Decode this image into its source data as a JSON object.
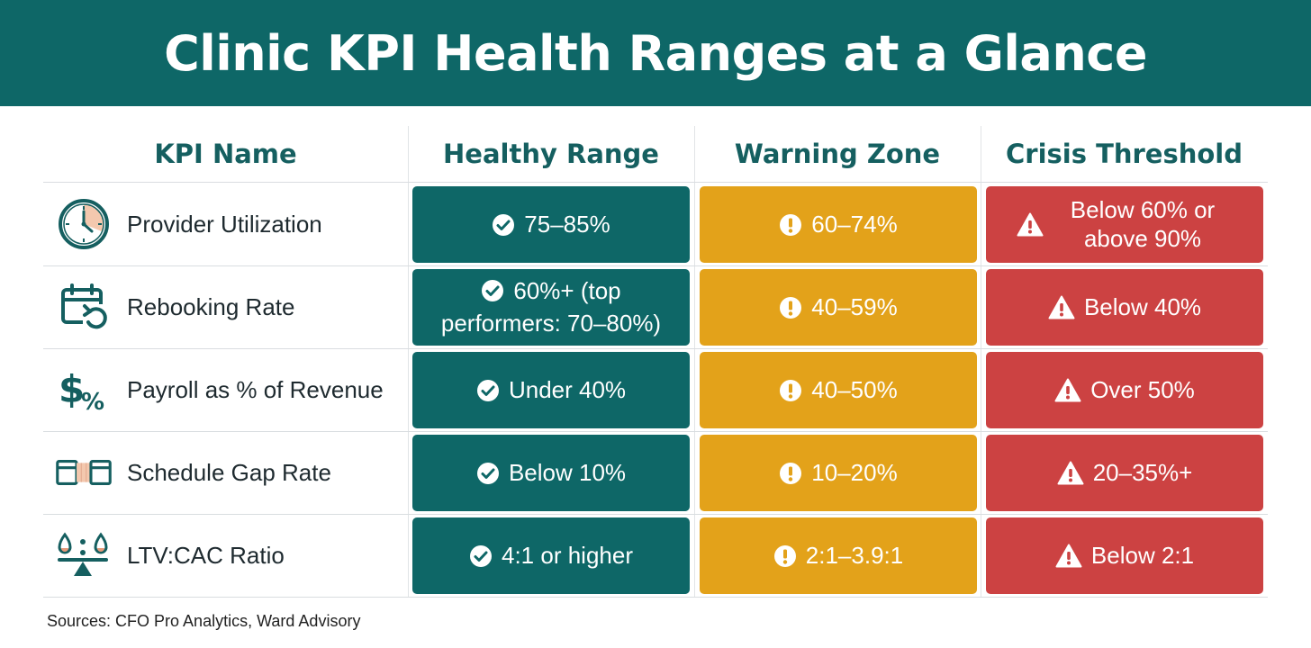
{
  "title": "Clinic KPI Health Ranges at a Glance",
  "columns": {
    "kpi": "KPI Name",
    "healthy": "Healthy Range",
    "warning": "Warning Zone",
    "crisis": "Crisis Threshold"
  },
  "rows": [
    {
      "icon": "clock-icon",
      "name": "Provider Utilization",
      "healthy": "75–85%",
      "warning": "60–74%",
      "crisis": "Below 60% or above 90%"
    },
    {
      "icon": "calendar-rebook-icon",
      "name": "Rebooking Rate",
      "healthy": "60%+ (top performers: 70–80%)",
      "warning": "40–59%",
      "crisis": "Below 40%"
    },
    {
      "icon": "dollar-percent-icon",
      "name": "Payroll as % of Revenue",
      "healthy": "Under 40%",
      "warning": "40–50%",
      "crisis": "Over 50%"
    },
    {
      "icon": "schedule-gap-icon",
      "name": "Schedule Gap Rate",
      "healthy": "Below 10%",
      "warning": "10–20%",
      "crisis": "20–35%+"
    },
    {
      "icon": "balance-scale-icon",
      "name": "LTV:CAC Ratio",
      "healthy": "4:1 or higher",
      "warning": "2:1–3.9:1",
      "crisis": "Below 2:1"
    }
  ],
  "footer": "Sources: CFO Pro Analytics, Ward Advisory",
  "colors": {
    "header": "#0e6767",
    "healthy": "#0e6767",
    "warning": "#e3a21a",
    "crisis": "#cc4242"
  }
}
